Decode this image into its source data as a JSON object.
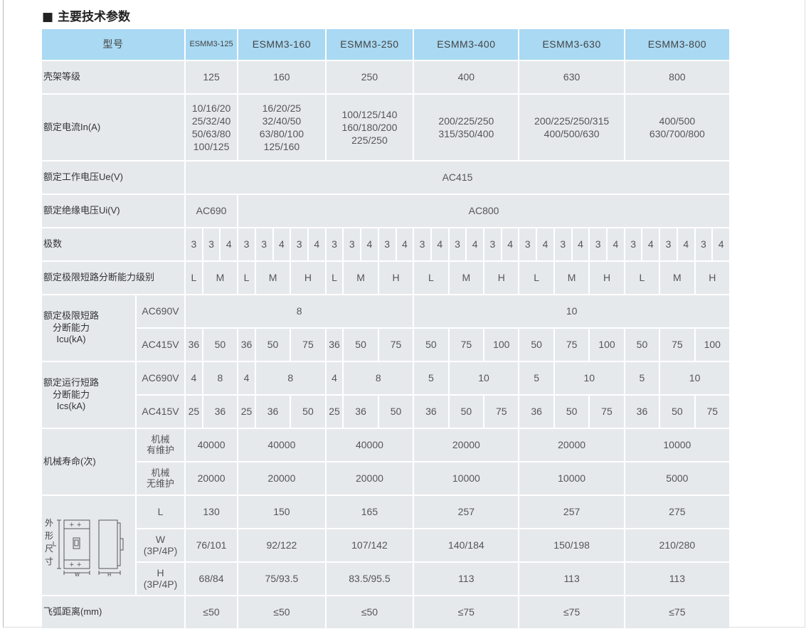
{
  "title": "■ 主要技术参数",
  "header": {
    "label": "型号",
    "models": [
      "ESMM3-125",
      "ESMM3-160",
      "ESMM3-250",
      "ESMM3-400",
      "ESMM3-630",
      "ESMM3-800"
    ]
  },
  "frame_rating": {
    "label": "壳架等级",
    "values": [
      "125",
      "160",
      "250",
      "400",
      "630",
      "800"
    ]
  },
  "rated_current": {
    "label": "额定电流In(A)",
    "values": [
      "10/16/20\n25/32/40\n50/63/80\n100/125",
      "16/20/25\n32/40/50\n63/80/100\n125/160",
      "100/125/140\n160/180/200\n225/250",
      "200/225/250\n315/350/400",
      "200/225/250/315\n400/500/630",
      "400/500\n630/700/800"
    ]
  },
  "rated_voltage_ue": {
    "label": "额定工作电压Ue(V)",
    "values": [
      "AC415"
    ]
  },
  "insulation_voltage_ui": {
    "label": "额定绝缘电压Ui(V)",
    "values": [
      "AC690",
      "AC800"
    ]
  },
  "poles": {
    "label": "极数",
    "values": [
      "3",
      "3",
      "4",
      "3",
      "3",
      "4",
      "3",
      "4",
      "3",
      "3",
      "4",
      "3",
      "4",
      "3",
      "4",
      "3",
      "4",
      "3",
      "4",
      "3",
      "4",
      "3",
      "4",
      "3",
      "4",
      "3",
      "4",
      "3",
      "4",
      "3",
      "4"
    ]
  },
  "breaking_level": {
    "label": "额定极限短路分断能力级别",
    "values": [
      "L",
      "M",
      "L",
      "M",
      "H",
      "L",
      "M",
      "H",
      "L",
      "M",
      "H",
      "L",
      "M",
      "H",
      "L",
      "M",
      "H"
    ]
  },
  "icu": {
    "label": "额定极限短路\n分断能力\nIcu(kA)",
    "ac690": {
      "label": "AC690V",
      "values": [
        "8",
        "10"
      ]
    },
    "ac415": {
      "label": "AC415V",
      "values": [
        "36",
        "50",
        "36",
        "50",
        "75",
        "36",
        "50",
        "75",
        "50",
        "75",
        "100",
        "50",
        "75",
        "100",
        "50",
        "75",
        "100"
      ]
    }
  },
  "ics": {
    "label": "额定运行短路\n分断能力\nIcs(kA)",
    "ac690": {
      "label": "AC690V",
      "values": [
        "4",
        "8",
        "4",
        "8",
        "4",
        "8",
        "5",
        "10",
        "5",
        "10",
        "5",
        "10"
      ]
    },
    "ac415": {
      "label": "AC415V",
      "values": [
        "25",
        "36",
        "25",
        "36",
        "50",
        "25",
        "36",
        "50",
        "36",
        "50",
        "75",
        "36",
        "50",
        "75",
        "36",
        "50",
        "75"
      ]
    }
  },
  "mechanical_life": {
    "label": "机械寿命(次)",
    "maintained": {
      "label": "机械\n有维护",
      "values": [
        "40000",
        "40000",
        "40000",
        "20000",
        "20000",
        "10000"
      ]
    },
    "unmaintained": {
      "label": "机械\n无维护",
      "values": [
        "20000",
        "20000",
        "20000",
        "10000",
        "10000",
        "5000"
      ]
    }
  },
  "dimensions": {
    "label_chars": [
      "外",
      "形",
      "尺",
      "寸"
    ],
    "w_mark": "W",
    "h_mark": "H",
    "L": {
      "label": "L",
      "values": [
        "130",
        "150",
        "165",
        "257",
        "257",
        "275"
      ]
    },
    "W": {
      "label": "W\n(3P/4P)",
      "values": [
        "76/101",
        "92/122",
        "107/142",
        "140/184",
        "150/198",
        "210/280"
      ]
    },
    "H": {
      "label": "H\n(3P/4P)",
      "values": [
        "68/84",
        "75/93.5",
        "83.5/95.5",
        "113",
        "113",
        "113"
      ]
    }
  },
  "arc_distance": {
    "label": "飞弧距离(mm)",
    "values": [
      "≤50",
      "≤50",
      "≤50",
      "≤75",
      "≤75",
      "≤75"
    ]
  },
  "colors": {
    "header_bg": "#a9d9f3",
    "cell_bg": "#e6e9ec"
  }
}
